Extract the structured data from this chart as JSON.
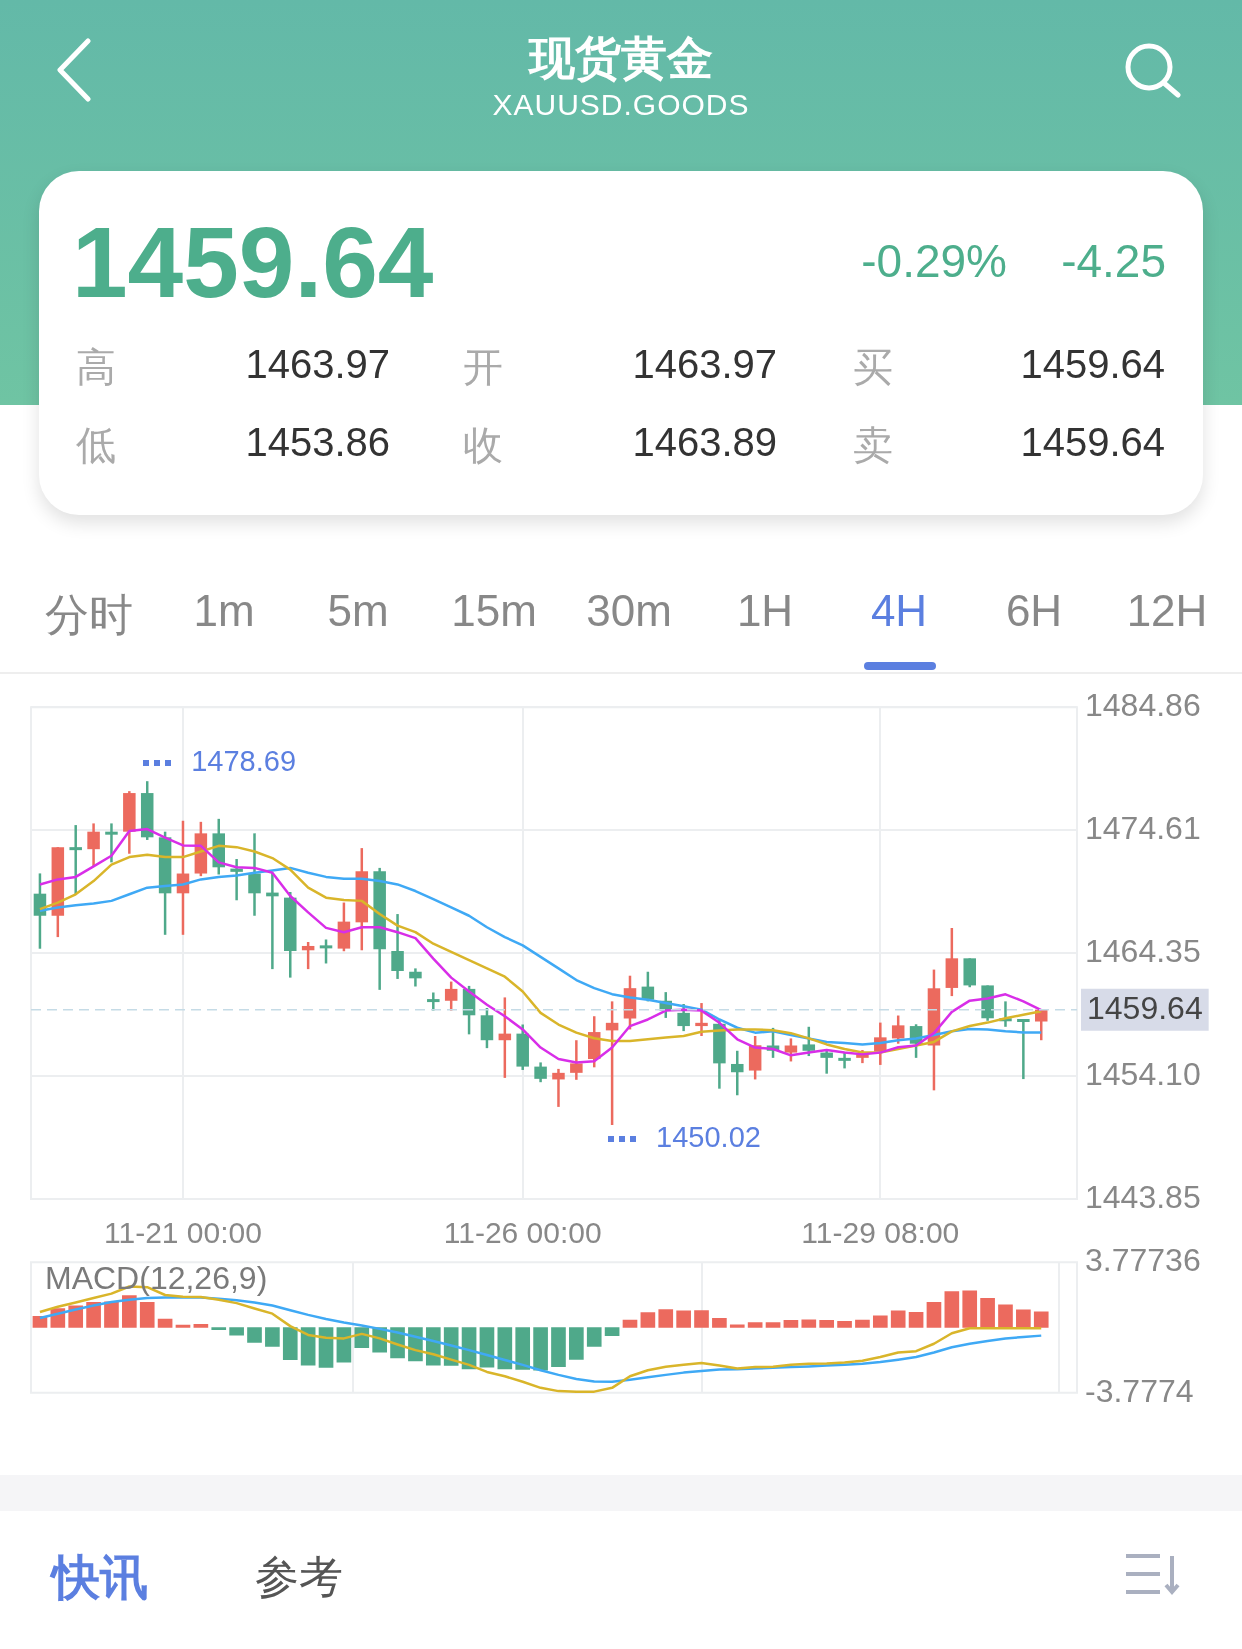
{
  "chart_data": [
    {
      "type": "other",
      "title": "现货黄金",
      "subtitle": "XAUUSD.GOODS",
      "annotations": [
        "1459.64",
        "-0.29%",
        "-4.25",
        "高",
        "1463.97",
        "开",
        "1463.97",
        "买",
        "1459.64",
        "低",
        "1453.86",
        "收",
        "1463.89",
        "卖",
        "1459.64",
        "分时",
        "1m",
        "5m",
        "15m",
        "30m",
        "1H",
        "4H",
        "6H",
        "12H",
        "快讯",
        "参考"
      ]
    },
    {
      "type": "candlestick",
      "categories": [
        null,
        null,
        null,
        null,
        null,
        null,
        null,
        null,
        "11-21 00:00",
        null,
        null,
        null,
        null,
        null,
        null,
        null,
        null,
        null,
        null,
        null,
        null,
        null,
        null,
        null,
        null,
        null,
        null,
        "11-26 00:00",
        null,
        null,
        null,
        null,
        null,
        null,
        null,
        null,
        null,
        null,
        null,
        null,
        null,
        null,
        null,
        null,
        null,
        null,
        null,
        "11-29 08:00",
        null,
        null,
        null,
        null,
        null,
        null,
        null,
        null,
        null
      ],
      "ohlc": [
        [
          1469.31,
          1471.0,
          1464.72,
          1467.47
        ],
        [
          1467.47,
          1473.19,
          1465.69,
          1473.19
        ],
        [
          1473.19,
          1475.03,
          1469.26,
          1473.08
        ],
        [
          1473.02,
          1475.17,
          1471.59,
          1474.48
        ],
        [
          1474.48,
          1475.17,
          1471.92,
          1474.37
        ],
        [
          1474.48,
          1477.86,
          1472.64,
          1477.7
        ],
        [
          1477.7,
          1478.69,
          1473.79,
          1474.01
        ],
        [
          1474.01,
          1474.48,
          1465.88,
          1469.34
        ],
        [
          1469.34,
          1475.39,
          1465.88,
          1470.99
        ],
        [
          1470.99,
          1475.3,
          1470.77,
          1474.34
        ],
        [
          1474.34,
          1475.55,
          1470.91,
          1471.51
        ],
        [
          1471.4,
          1472.2,
          1468.76,
          1471.13
        ],
        [
          1470.99,
          1474.34,
          1467.47,
          1469.34
        ],
        [
          1469.4,
          1471.05,
          1463.02,
          1469.09
        ],
        [
          1468.98,
          1469.45,
          1462.31,
          1464.53
        ],
        [
          1464.59,
          1465.28,
          1463.02,
          1464.95
        ],
        [
          1465.0,
          1465.49,
          1463.49,
          1464.86
        ],
        [
          1464.73,
          1468.57,
          1464.51,
          1466.98
        ],
        [
          1466.92,
          1473.11,
          1464.59,
          1471.18
        ],
        [
          1471.18,
          1471.46,
          1461.29,
          1464.67
        ],
        [
          1464.53,
          1467.61,
          1462.2,
          1462.86
        ],
        [
          1462.8,
          1463.08,
          1461.57,
          1462.25
        ],
        [
          1460.52,
          1461.07,
          1459.56,
          1460.41
        ],
        [
          1460.38,
          1461.98,
          1459.56,
          1461.37
        ],
        [
          1461.37,
          1461.62,
          1457.58,
          1459.17
        ],
        [
          1459.17,
          1459.78,
          1456.43,
          1457.09
        ],
        [
          1457.09,
          1460.66,
          1453.95,
          1457.64
        ],
        [
          1457.64,
          1458.4,
          1454.61,
          1454.89
        ],
        [
          1454.89,
          1455.24,
          1453.59,
          1453.87
        ],
        [
          1453.82,
          1454.7,
          1451.53,
          1454.37
        ],
        [
          1454.37,
          1457.09,
          1453.79,
          1455.16
        ],
        [
          1455.52,
          1459.09,
          1454.83,
          1457.77
        ],
        [
          1457.91,
          1460.33,
          1450.02,
          1458.54
        ],
        [
          1458.9,
          1462.47,
          1457.99,
          1461.43
        ],
        [
          1461.56,
          1462.8,
          1460.33,
          1460.47
        ],
        [
          1460.38,
          1461.1,
          1458.95,
          1459.56
        ],
        [
          1459.37,
          1460.11,
          1457.85,
          1458.27
        ],
        [
          1458.27,
          1460.19,
          1457.44,
          1458.54
        ],
        [
          1458.46,
          1458.82,
          1453.05,
          1455.16
        ],
        [
          1455.11,
          1456.21,
          1452.5,
          1454.42
        ],
        [
          1454.56,
          1457.44,
          1453.82,
          1456.67
        ],
        [
          1456.65,
          1458.12,
          1455.62,
          1456.21
        ],
        [
          1456.06,
          1457.24,
          1455.32,
          1456.65
        ],
        [
          1456.74,
          1458.21,
          1455.77,
          1456.21
        ],
        [
          1456.06,
          1456.36,
          1454.3,
          1455.62
        ],
        [
          1455.62,
          1456.06,
          1454.74,
          1455.44
        ],
        [
          1455.62,
          1456.27,
          1455.18,
          1455.91
        ],
        [
          1456.15,
          1458.56,
          1455.03,
          1457.33
        ],
        [
          1457.24,
          1459.15,
          1456.8,
          1458.33
        ],
        [
          1458.27,
          1458.42,
          1455.62,
          1456.8
        ],
        [
          1456.65,
          1462.98,
          1452.91,
          1461.42
        ],
        [
          1461.45,
          1466.45,
          1460.77,
          1463.92
        ],
        [
          1463.92,
          1463.92,
          1461.51,
          1461.66
        ],
        [
          1461.66,
          1461.66,
          1458.71,
          1458.92
        ],
        [
          1458.92,
          1460.33,
          1458.21,
          1458.8
        ],
        [
          1458.86,
          1458.86,
          1453.85,
          1458.71
        ],
        [
          1458.65,
          1459.64,
          1457.09,
          1459.64
        ]
      ],
      "colors": [
        "#4fa98a",
        "#ec6a5e",
        "#4fa98a",
        "#ec6a5e",
        "#4fa98a",
        "#ec6a5e",
        "#4fa98a",
        "#4fa98a",
        "#ec6a5e",
        "#ec6a5e",
        "#4fa98a",
        "#4fa98a",
        "#4fa98a",
        "#4fa98a",
        "#4fa98a",
        "#ec6a5e",
        "#4fa98a",
        "#ec6a5e",
        "#ec6a5e",
        "#4fa98a",
        "#4fa98a",
        "#4fa98a",
        "#4fa98a",
        "#ec6a5e",
        "#4fa98a",
        "#4fa98a",
        "#ec6a5e",
        "#4fa98a",
        "#4fa98a",
        "#ec6a5e",
        "#ec6a5e",
        "#ec6a5e",
        "#ec6a5e",
        "#ec6a5e",
        "#4fa98a",
        "#4fa98a",
        "#4fa98a",
        "#ec6a5e",
        "#4fa98a",
        "#4fa98a",
        "#ec6a5e",
        "#4fa98a",
        "#ec6a5e",
        "#4fa98a",
        "#4fa98a",
        "#4fa98a",
        "#ec6a5e",
        "#ec6a5e",
        "#ec6a5e",
        "#4fa98a",
        "#ec6a5e",
        "#ec6a5e",
        "#4fa98a",
        "#4fa98a",
        "#4fa98a",
        "#4fa98a",
        "#ec6a5e"
      ],
      "series": [
        {
          "type": "line",
          "color": "#d82ee8",
          "values": [
            1470.08,
            1470.5,
            1470.71,
            1471.59,
            1472.47,
            1474.54,
            1474.7,
            1473.99,
            1473.33,
            1473.3,
            1471.92,
            1471.51,
            1471.46,
            1471.05,
            1469.12,
            1467.75,
            1466.46,
            1466.1,
            1466.51,
            1466.51,
            1466.1,
            1465.6,
            1463.9,
            1462.31,
            1461.15,
            1460.05,
            1459.09,
            1457.99,
            1456.48,
            1455.52,
            1455.24,
            1455.33,
            1456.48,
            1458.27,
            1458.82,
            1459.56,
            1459.64,
            1459.56,
            1458.54,
            1457.17,
            1456.48,
            1456.36,
            1455.83,
            1456.06,
            1456.27,
            1456.06,
            1455.91,
            1456.06,
            1456.5,
            1456.65,
            1457.68,
            1459.45,
            1460.39,
            1460.57,
            1460.92,
            1460.33,
            1459.59
          ]
        },
        {
          "type": "line",
          "color": "#d9b52a",
          "values": [
            1468.02,
            1468.57,
            1469.26,
            1470.36,
            1471.73,
            1472.36,
            1472.56,
            1472.36,
            1472.36,
            1472.83,
            1473.3,
            1473.19,
            1472.83,
            1472.28,
            1471.32,
            1469.81,
            1468.98,
            1468.79,
            1468.71,
            1467.61,
            1466.65,
            1466.1,
            1465.14,
            1464.45,
            1463.76,
            1463.08,
            1462.39,
            1461.15,
            1459.37,
            1458.4,
            1457.72,
            1457.25,
            1457.03,
            1457.03,
            1457.17,
            1457.31,
            1457.44,
            1457.8,
            1457.91,
            1457.99,
            1457.99,
            1457.92,
            1457.68,
            1457.24,
            1456.74,
            1456.36,
            1456.06,
            1456.06,
            1456.36,
            1456.65,
            1456.95,
            1457.83,
            1458.27,
            1458.56,
            1458.92,
            1459.21,
            1459.51
          ]
        },
        {
          "type": "line",
          "color": "#3fa9f5",
          "values": [
            1467.88,
            1468.16,
            1468.35,
            1468.49,
            1468.71,
            1469.26,
            1469.81,
            1469.95,
            1470.08,
            1470.5,
            1470.71,
            1470.83,
            1471.05,
            1471.24,
            1471.46,
            1471.05,
            1470.71,
            1470.55,
            1470.55,
            1470.36,
            1470.08,
            1469.53,
            1468.85,
            1468.16,
            1467.47,
            1466.51,
            1465.69,
            1465.0,
            1464.04,
            1463.08,
            1462.11,
            1461.43,
            1460.93,
            1460.66,
            1460.47,
            1460.19,
            1459.92,
            1459.64,
            1458.82,
            1458.13,
            1457.72,
            1457.83,
            1457.53,
            1457.24,
            1456.95,
            1456.86,
            1456.74,
            1456.86,
            1457.09,
            1457.24,
            1457.53,
            1457.83,
            1458.03,
            1457.98,
            1457.83,
            1457.74,
            1457.74
          ]
        }
      ],
      "ylim": [
        1443.85,
        1484.86
      ],
      "yticks": [
        1443.85,
        {
          "value": 1454.1,
          "label": "1454.10"
        },
        1464.35,
        1474.61,
        1484.86
      ],
      "grid": true,
      "annotations": [
        "1478.69",
        "1450.02"
      ],
      "ref_lines": [
        {
          "axis": "y",
          "value": 1459.64,
          "label": "1459.64",
          "color": "#c5dbe6",
          "line_style": "dashed"
        }
      ]
    },
    {
      "type": "bar",
      "title": "MACD(12,26,9)",
      "categories": [
        null,
        null,
        null,
        null,
        null,
        null,
        null,
        null,
        null,
        null,
        null,
        null,
        null,
        null,
        null,
        null,
        null,
        null,
        null,
        null,
        null,
        null,
        null,
        null,
        null,
        null,
        null,
        null,
        null,
        null,
        null,
        null,
        null,
        null,
        null,
        null,
        null,
        null,
        null,
        null,
        null,
        null,
        null,
        null,
        null,
        null,
        null,
        null,
        null,
        null,
        null,
        null,
        null,
        null,
        null,
        null,
        null
      ],
      "series": [
        {
          "type": "bar",
          "colors": [
            "#ec6a5e",
            "#ec6a5e",
            "#ec6a5e",
            "#ec6a5e",
            "#ec6a5e",
            "#ec6a5e",
            "#ec6a5e",
            "#ec6a5e",
            "#ec6a5e",
            "#ec6a5e",
            "#4fa98a",
            "#4fa98a",
            "#4fa98a",
            "#4fa98a",
            "#4fa98a",
            "#4fa98a",
            "#4fa98a",
            "#4fa98a",
            "#4fa98a",
            "#4fa98a",
            "#4fa98a",
            "#4fa98a",
            "#4fa98a",
            "#4fa98a",
            "#4fa98a",
            "#4fa98a",
            "#4fa98a",
            "#4fa98a",
            "#4fa98a",
            "#4fa98a",
            "#4fa98a",
            "#4fa98a",
            "#4fa98a",
            "#ec6a5e",
            "#ec6a5e",
            "#ec6a5e",
            "#ec6a5e",
            "#ec6a5e",
            "#ec6a5e",
            "#ec6a5e",
            "#ec6a5e",
            "#ec6a5e",
            "#ec6a5e",
            "#ec6a5e",
            "#ec6a5e",
            "#ec6a5e",
            "#ec6a5e",
            "#ec6a5e",
            "#ec6a5e",
            "#ec6a5e",
            "#ec6a5e",
            "#ec6a5e",
            "#ec6a5e",
            "#ec6a5e",
            "#ec6a5e",
            "#ec6a5e",
            "#ec6a5e"
          ],
          "values": [
            0.65,
            1.1,
            1.25,
            1.45,
            1.49,
            1.84,
            1.45,
            0.49,
            0.14,
            0.18,
            -0.12,
            -0.45,
            -0.86,
            -1.1,
            -1.86,
            -2.18,
            -2.31,
            -2.0,
            -1.16,
            -1.43,
            -1.76,
            -1.94,
            -2.18,
            -2.2,
            -2.39,
            -2.29,
            -2.39,
            -2.43,
            -2.47,
            -2.27,
            -1.84,
            -1.1,
            -0.47,
            0.43,
            0.86,
            1.04,
            0.96,
            0.98,
            0.53,
            0.16,
            0.29,
            0.29,
            0.41,
            0.45,
            0.41,
            0.35,
            0.43,
            0.67,
            0.96,
            0.88,
            1.45,
            2.08,
            2.12,
            1.69,
            1.31,
            1.02,
            0.9
          ]
        },
        {
          "type": "line",
          "color": "#d9b52a",
          "values": [
            0.9,
            1.2,
            1.45,
            1.71,
            1.96,
            2.37,
            2.33,
            1.88,
            1.78,
            1.76,
            1.61,
            1.41,
            1.1,
            0.8,
            0.08,
            -0.43,
            -0.59,
            -0.63,
            -0.37,
            -0.63,
            -0.98,
            -1.31,
            -1.55,
            -1.86,
            -2.16,
            -2.57,
            -2.82,
            -3.14,
            -3.49,
            -3.68,
            -3.72,
            -3.71,
            -3.49,
            -2.82,
            -2.47,
            -2.27,
            -2.16,
            -2.06,
            -2.2,
            -2.37,
            -2.29,
            -2.27,
            -2.16,
            -2.1,
            -2.08,
            -2.02,
            -1.92,
            -1.71,
            -1.45,
            -1.37,
            -0.94,
            -0.33,
            -0.04,
            -0.04,
            -0.04,
            -0.04,
            -0.04
          ]
        },
        {
          "type": "line",
          "color": "#3fa9f5",
          "values": [
            0.55,
            0.8,
            1.04,
            1.27,
            1.47,
            1.61,
            1.71,
            1.74,
            1.74,
            1.74,
            1.67,
            1.57,
            1.45,
            1.27,
            1.0,
            0.73,
            0.49,
            0.29,
            0.12,
            -0.08,
            -0.29,
            -0.53,
            -0.78,
            -1.04,
            -1.31,
            -1.59,
            -1.88,
            -2.16,
            -2.47,
            -2.74,
            -2.98,
            -3.12,
            -3.14,
            -3.02,
            -2.88,
            -2.74,
            -2.61,
            -2.51,
            -2.43,
            -2.41,
            -2.37,
            -2.33,
            -2.29,
            -2.25,
            -2.2,
            -2.16,
            -2.1,
            -2.0,
            -1.86,
            -1.71,
            -1.45,
            -1.14,
            -0.94,
            -0.78,
            -0.63,
            -0.55,
            -0.47
          ]
        }
      ],
      "ylim": [
        -3.7774,
        3.77736
      ],
      "yticks": [
        -3.7774,
        3.77736
      ],
      "grid": "x",
      "tick_labels": "y"
    }
  ]
}
